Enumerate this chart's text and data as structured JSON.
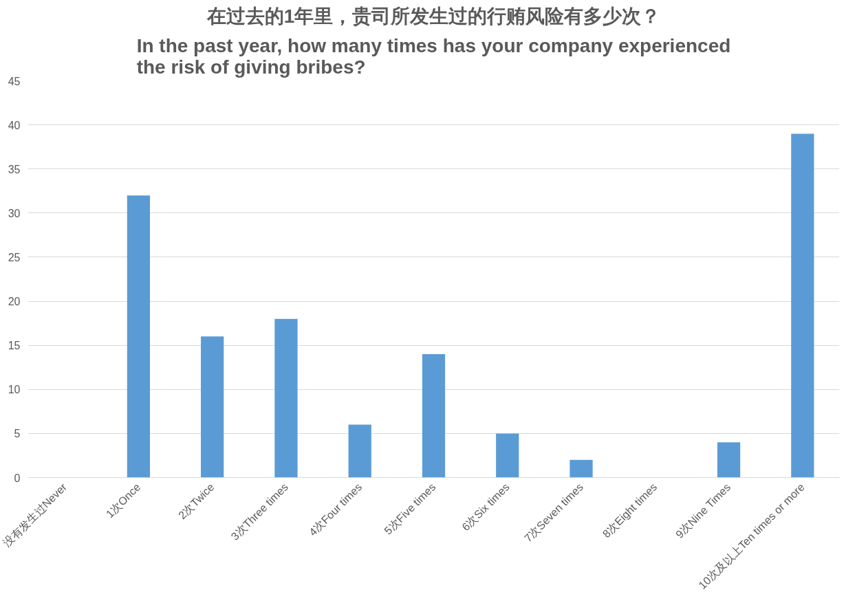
{
  "chart_data": {
    "type": "bar",
    "title": "在过去的1年里，贵司所发生过的行贿风险有多少次？",
    "subtitle": "In the past year, how many times has your company experienced the risk of giving bribes?",
    "categories": [
      "没有发生过Never",
      "1次Once",
      "2次Twice",
      "3次Three times",
      "4次Four times",
      "5次Five times",
      "6次Six times",
      "7次Seven times",
      "8次Eight times",
      "9次Nine Times",
      "10次及以上Ten times or more"
    ],
    "values": [
      0,
      32,
      16,
      18,
      6,
      14,
      5,
      2,
      0,
      4,
      39
    ],
    "color": "#5b9bd5",
    "ylim": [
      0,
      45
    ],
    "yticks": [
      0,
      5,
      10,
      15,
      20,
      25,
      30,
      35,
      40,
      45
    ],
    "grid": "y"
  }
}
